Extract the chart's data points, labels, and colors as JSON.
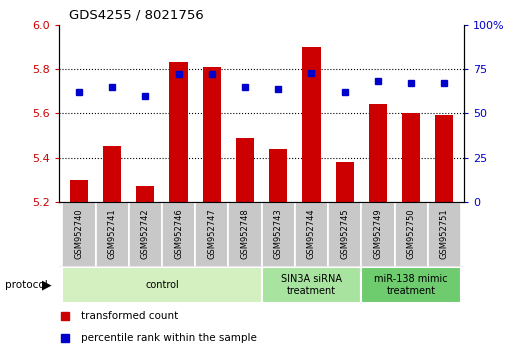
{
  "title": "GDS4255 / 8021756",
  "samples": [
    "GSM952740",
    "GSM952741",
    "GSM952742",
    "GSM952746",
    "GSM952747",
    "GSM952748",
    "GSM952743",
    "GSM952744",
    "GSM952745",
    "GSM952749",
    "GSM952750",
    "GSM952751"
  ],
  "transformed_count": [
    5.3,
    5.45,
    5.27,
    5.83,
    5.81,
    5.49,
    5.44,
    5.9,
    5.38,
    5.64,
    5.6,
    5.59
  ],
  "percentile_rank": [
    62,
    65,
    60,
    72,
    72,
    65,
    64,
    73,
    62,
    68,
    67,
    67
  ],
  "bar_bottom": 5.2,
  "ylim_left": [
    5.2,
    6.0
  ],
  "ylim_right": [
    0,
    100
  ],
  "yticks_left": [
    5.2,
    5.4,
    5.6,
    5.8,
    6.0
  ],
  "yticks_right": [
    0,
    25,
    50,
    75,
    100
  ],
  "ytick_labels_right": [
    "0",
    "25",
    "50",
    "75",
    "100%"
  ],
  "groups": [
    {
      "label": "control",
      "indices": [
        0,
        1,
        2,
        3,
        4,
        5
      ],
      "color": "#d4f0c0"
    },
    {
      "label": "SIN3A siRNA\ntreatment",
      "indices": [
        6,
        7,
        8
      ],
      "color": "#a8e4a0"
    },
    {
      "label": "miR-138 mimic\ntreatment",
      "indices": [
        9,
        10,
        11
      ],
      "color": "#6ecb6e"
    }
  ],
  "bar_color": "#cc0000",
  "dot_color": "#0000cc",
  "bar_width": 0.55,
  "legend_items": [
    {
      "label": "transformed count",
      "color": "#cc0000"
    },
    {
      "label": "percentile rank within the sample",
      "color": "#0000cc"
    }
  ]
}
